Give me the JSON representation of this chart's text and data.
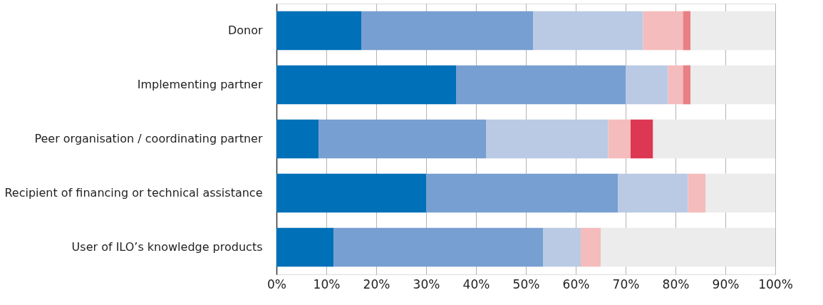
{
  "chart_data": {
    "type": "bar",
    "orientation": "horizontal",
    "stacked": true,
    "categories": [
      "Donor",
      "Implementing partner",
      "Peer organisation / coordinating partner",
      "Recipient of financing or technical assistance",
      "User of ILO’s knowledge products"
    ],
    "series": [
      {
        "color": "#0070b8",
        "values": [
          17,
          36,
          8.5,
          30,
          11.5
        ]
      },
      {
        "color": "#779fd1",
        "values": [
          34.5,
          34,
          33.5,
          38.5,
          42
        ]
      },
      {
        "color": "#bacae4",
        "values": [
          22,
          8.5,
          24.5,
          14,
          7.5
        ]
      },
      {
        "color": "#f4bcbc",
        "values": [
          8,
          3,
          4.5,
          3.5,
          4
        ]
      },
      {
        "color": "#e98085",
        "values": [
          1.5,
          1.5,
          0,
          0,
          0
        ]
      },
      {
        "color": "#dc3853",
        "values": [
          0,
          0,
          4.5,
          0,
          0
        ]
      },
      {
        "color": "#ececec",
        "values": [
          17,
          17,
          24.5,
          14,
          35
        ]
      }
    ],
    "xlim": [
      0,
      100
    ],
    "xticks": [
      {
        "value": 0,
        "label": "0%"
      },
      {
        "value": 10,
        "label": "10%"
      },
      {
        "value": 20,
        "label": "20%"
      },
      {
        "value": 30,
        "label": "30%"
      },
      {
        "value": 40,
        "label": "40%"
      },
      {
        "value": 50,
        "label": "50%"
      },
      {
        "value": 60,
        "label": "60%"
      },
      {
        "value": 70,
        "label": "70%"
      },
      {
        "value": 80,
        "label": "80%"
      },
      {
        "value": 90,
        "label": "90%"
      },
      {
        "value": 100,
        "label": "100%"
      }
    ],
    "grid": "x",
    "legend": false
  }
}
